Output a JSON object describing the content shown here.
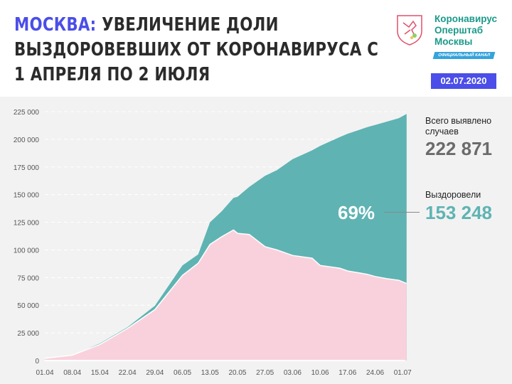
{
  "header": {
    "title_city": "МОСКВА:",
    "title_rest": " УВЕЛИЧЕНИЕ ДОЛИ ВЫЗДОРОВЕВШИХ ОТ КОРОНАВИРУСА С 1 АПРЕЛЯ ПО 2 ИЮЛЯ",
    "brand": [
      "Коронавирус",
      "Оперштаб",
      "Москвы"
    ],
    "channel": "ОФИЦИАЛЬНЫЙ КАНАЛ",
    "date": "02.07.2020",
    "title_color": "#4b4ee8"
  },
  "summary": {
    "total_label": "Всего выявлено случаев",
    "total_value": "222 871",
    "recovered_label": "Выздоровели",
    "recovered_value": "153 248",
    "recovered_share": "69%"
  },
  "chart_data": {
    "type": "area",
    "x_ticks": [
      "01.04",
      "08.04",
      "15.04",
      "22.04",
      "29.04",
      "06.05",
      "13.05",
      "20.05",
      "27.05",
      "03.06",
      "10.06",
      "17.06",
      "24.06",
      "01.07"
    ],
    "y_ticks": [
      "0",
      "25 000",
      "50 000",
      "75 000",
      "100 000",
      "125 000",
      "150 000",
      "175 000",
      "200 000",
      "225 000"
    ],
    "ylim": [
      0,
      225000
    ],
    "grid": true,
    "colors": {
      "recovered": "#5fb3b3",
      "active": "#f9d1dc"
    },
    "dates": [
      "01.04",
      "08.04",
      "15.04",
      "22.04",
      "29.04",
      "06.05",
      "10.05",
      "13.05",
      "16.05",
      "19.05",
      "20.05",
      "23.05",
      "27.05",
      "30.05",
      "03.06",
      "08.06",
      "10.06",
      "15.06",
      "17.06",
      "22.06",
      "24.06",
      "27.06",
      "30.06",
      "02.07"
    ],
    "total": [
      2000,
      5000,
      15400,
      30000,
      49500,
      86000,
      96000,
      125000,
      135000,
      147000,
      148000,
      157000,
      167000,
      172000,
      182000,
      190000,
      194000,
      202000,
      205000,
      211000,
      213000,
      216000,
      219000,
      222871
    ],
    "active": [
      2000,
      4800,
      14500,
      29000,
      46000,
      77000,
      88000,
      105000,
      112000,
      118000,
      115000,
      114000,
      103000,
      100000,
      95000,
      92500,
      86000,
      83500,
      81000,
      78000,
      76000,
      74000,
      72600,
      69623
    ]
  }
}
